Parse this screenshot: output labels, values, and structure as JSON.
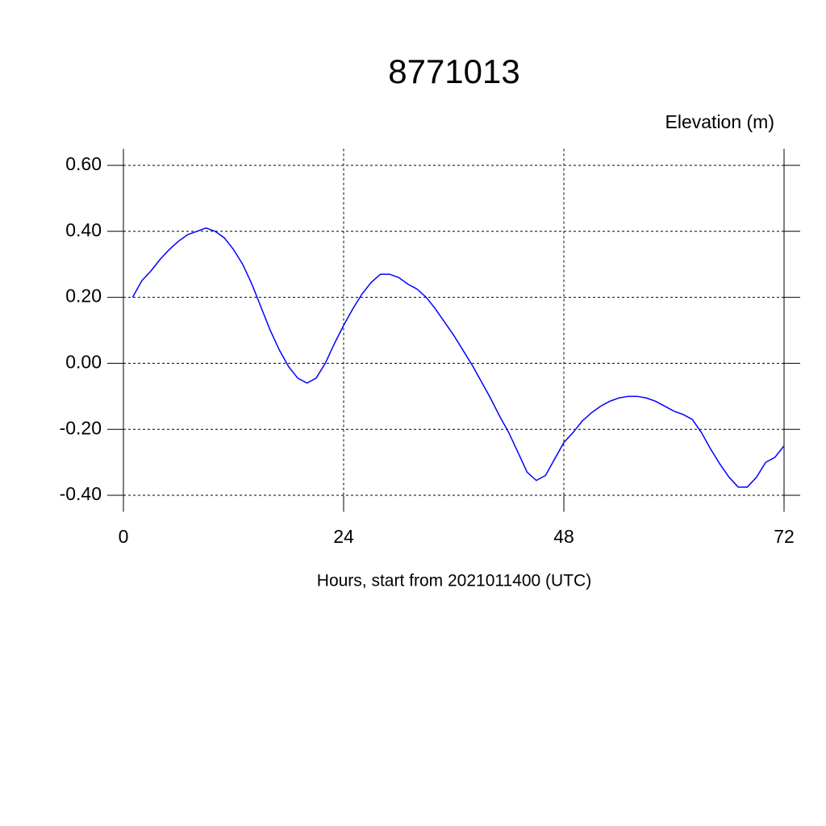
{
  "chart_data": {
    "type": "line",
    "title": "8771013",
    "subtitle": "Elevation (m)",
    "x_label": "Hours, start from 2021011400 (UTC)",
    "x": [
      1,
      2,
      3,
      4,
      5,
      6,
      7,
      8,
      9,
      10,
      11,
      12,
      13,
      14,
      15,
      16,
      17,
      18,
      19,
      20,
      21,
      22,
      23,
      24,
      25,
      26,
      27,
      28,
      29,
      30,
      31,
      32,
      33,
      34,
      35,
      36,
      37,
      38,
      39,
      40,
      41,
      42,
      43,
      44,
      45,
      46,
      47,
      48,
      49,
      50,
      51,
      52,
      53,
      54,
      55,
      56,
      57,
      58,
      59,
      60,
      61,
      62,
      63,
      64,
      65,
      66,
      67,
      68,
      69,
      70,
      71,
      72
    ],
    "series": [
      {
        "name": "Elevation",
        "color": "#0000ff",
        "values": [
          0.2,
          0.25,
          0.28,
          0.315,
          0.345,
          0.37,
          0.39,
          0.4,
          0.41,
          0.4,
          0.38,
          0.345,
          0.3,
          0.24,
          0.17,
          0.1,
          0.04,
          -0.01,
          -0.045,
          -0.06,
          -0.045,
          0.0,
          0.06,
          0.115,
          0.165,
          0.21,
          0.245,
          0.27,
          0.27,
          0.26,
          0.24,
          0.225,
          0.2,
          0.165,
          0.125,
          0.085,
          0.04,
          -0.005,
          -0.055,
          -0.105,
          -0.16,
          -0.21,
          -0.27,
          -0.33,
          -0.355,
          -0.34,
          -0.29,
          -0.24,
          -0.21,
          -0.175,
          -0.15,
          -0.13,
          -0.115,
          -0.105,
          -0.1,
          -0.1,
          -0.105,
          -0.115,
          -0.13,
          -0.145,
          -0.155,
          -0.17,
          -0.21,
          -0.26,
          -0.305,
          -0.345,
          -0.375,
          -0.375,
          -0.345,
          -0.3,
          -0.285,
          -0.25
        ]
      }
    ],
    "xlim": [
      0,
      72
    ],
    "xticks": [
      0,
      24,
      48,
      72
    ],
    "ylim": [
      -0.45,
      0.65
    ],
    "yticks": [
      {
        "value": -0.4,
        "label": "-0.40"
      },
      {
        "value": -0.2,
        "label": "-0.20"
      },
      {
        "value": 0,
        "label": "0.00"
      },
      {
        "value": 0.2,
        "label": "0.20"
      },
      {
        "value": 0.4,
        "label": "0.40"
      },
      {
        "value": 0.6,
        "label": "0.60"
      }
    ],
    "grid": true
  }
}
